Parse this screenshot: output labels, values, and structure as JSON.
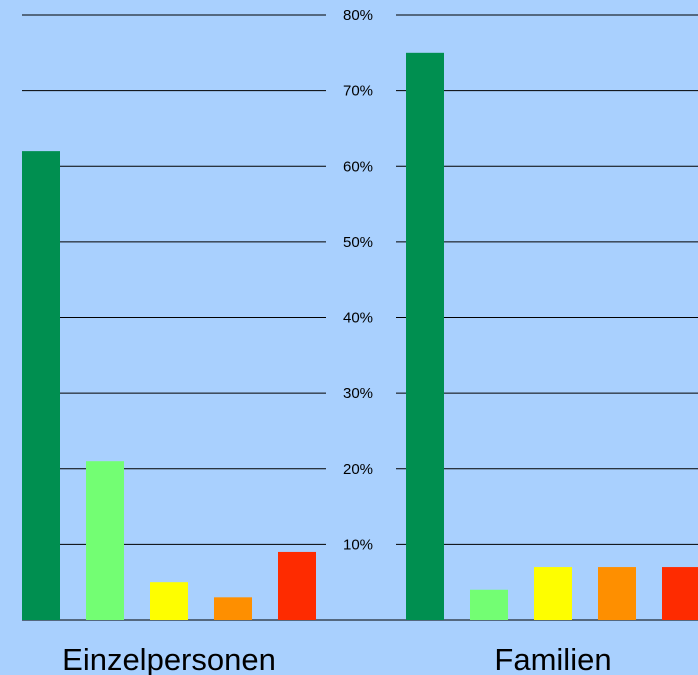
{
  "chart_data": {
    "type": "bar",
    "title": "",
    "xlabel": "",
    "ylabel": "",
    "ylim": [
      0,
      80
    ],
    "y_ticks": [
      "10%",
      "20%",
      "30%",
      "40%",
      "50%",
      "60%",
      "70%",
      "80%"
    ],
    "grid": true,
    "legend": "none",
    "background_color": "#a9d0fe",
    "categories": [
      "Einzelpersonen",
      "Familien"
    ],
    "series": [
      {
        "color": "#008f50",
        "values": [
          62,
          75
        ]
      },
      {
        "color": "#73fe73",
        "values": [
          21,
          4
        ]
      },
      {
        "color": "#fefe00",
        "values": [
          5,
          7
        ]
      },
      {
        "color": "#fe8f00",
        "values": [
          3,
          7
        ]
      },
      {
        "color": "#fe2b00",
        "values": [
          9,
          7
        ]
      }
    ]
  }
}
